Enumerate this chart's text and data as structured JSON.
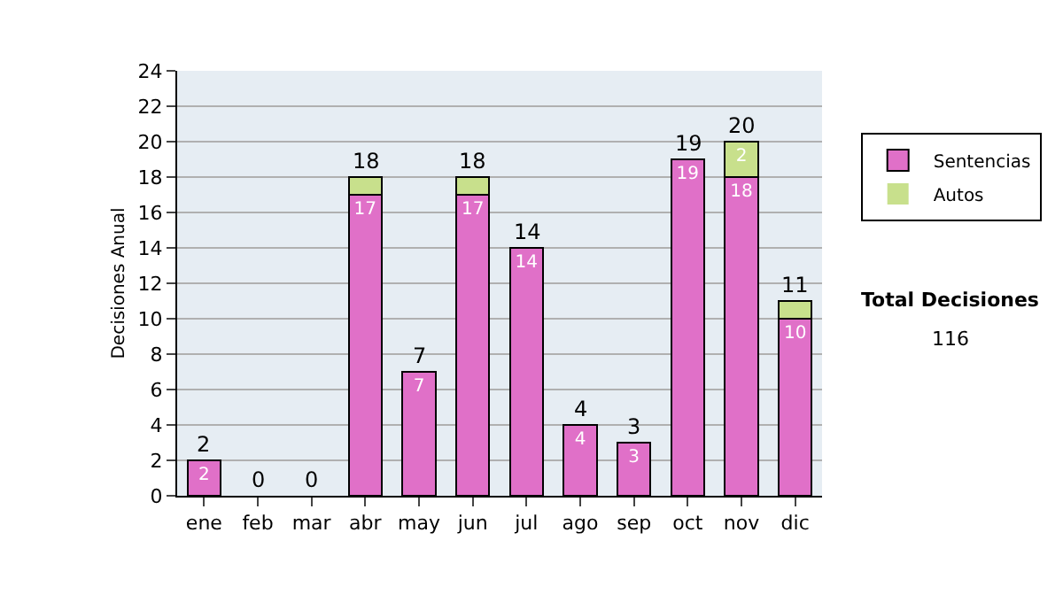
{
  "chart_data": {
    "type": "bar",
    "stacked": true,
    "ylabel": "Decisiones Anual",
    "categories": [
      "ene",
      "feb",
      "mar",
      "abr",
      "may",
      "jun",
      "jul",
      "ago",
      "sep",
      "oct",
      "nov",
      "dic"
    ],
    "series": [
      {
        "name": "Sentencias",
        "color": "#e070c8",
        "values": [
          2,
          0,
          0,
          17,
          7,
          17,
          14,
          4,
          3,
          19,
          18,
          10
        ],
        "value_labels": [
          "2",
          null,
          null,
          "17",
          "7",
          "17",
          "14",
          "4",
          "3",
          "19",
          "18",
          "10"
        ]
      },
      {
        "name": "Autos",
        "color": "#c8e08c",
        "values": [
          0,
          0,
          0,
          1,
          0,
          1,
          0,
          0,
          0,
          0,
          2,
          1
        ],
        "value_labels": [
          null,
          null,
          null,
          null,
          null,
          null,
          null,
          null,
          null,
          null,
          "2",
          null
        ]
      }
    ],
    "totals": [
      "2",
      "0",
      "0",
      "18",
      "7",
      "18",
      "14",
      "4",
      "3",
      "19",
      "20",
      "11"
    ],
    "ylim": [
      0,
      24
    ],
    "yticks": [
      0,
      2,
      4,
      6,
      8,
      10,
      12,
      14,
      16,
      18,
      20,
      22,
      24
    ],
    "grid": "y",
    "legend": "right",
    "annotations": [
      "Total Decisiones",
      "116"
    ]
  }
}
